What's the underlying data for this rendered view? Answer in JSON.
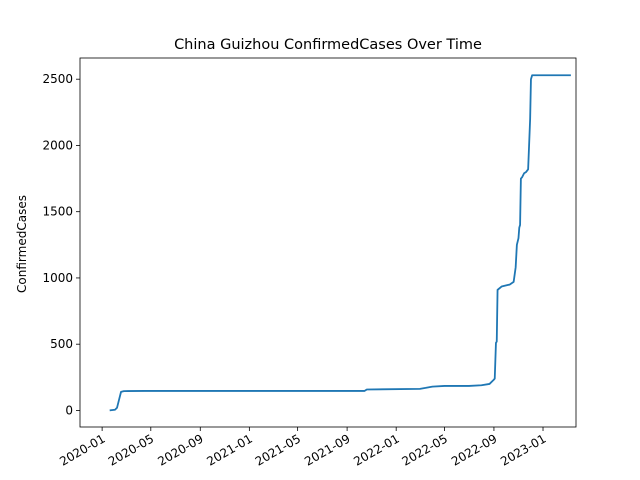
{
  "chart_data": {
    "type": "line",
    "title": "China Guizhou ConfirmedCases Over Time",
    "xlabel": "",
    "ylabel": "ConfirmedCases",
    "xlim": [
      "2019-11-07",
      "2023-03-24"
    ],
    "ylim": [
      -125,
      2660
    ],
    "xticks": [
      {
        "date": "2020-01-01",
        "label": "2020-01"
      },
      {
        "date": "2020-05-01",
        "label": "2020-05"
      },
      {
        "date": "2020-09-01",
        "label": "2020-09"
      },
      {
        "date": "2021-01-01",
        "label": "2021-01"
      },
      {
        "date": "2021-05-01",
        "label": "2021-05"
      },
      {
        "date": "2021-09-01",
        "label": "2021-09"
      },
      {
        "date": "2022-01-01",
        "label": "2022-01"
      },
      {
        "date": "2022-05-01",
        "label": "2022-05"
      },
      {
        "date": "2022-09-01",
        "label": "2022-09"
      },
      {
        "date": "2023-01-01",
        "label": "2023-01"
      }
    ],
    "yticks": [
      0,
      500,
      1000,
      1500,
      2000,
      2500
    ],
    "grid": false,
    "line_color": "#1f77b4",
    "series": [
      {
        "points": [
          [
            "2020-01-22",
            1
          ],
          [
            "2020-02-02",
            5
          ],
          [
            "2020-02-07",
            20
          ],
          [
            "2020-02-12",
            80
          ],
          [
            "2020-02-17",
            140
          ],
          [
            "2020-02-24",
            146
          ],
          [
            "2020-04-15",
            147
          ],
          [
            "2021-10-14",
            147
          ],
          [
            "2021-10-20",
            158
          ],
          [
            "2022-03-01",
            163
          ],
          [
            "2022-03-15",
            170
          ],
          [
            "2022-04-01",
            180
          ],
          [
            "2022-05-01",
            185
          ],
          [
            "2022-07-01",
            185
          ],
          [
            "2022-08-01",
            190
          ],
          [
            "2022-08-21",
            200
          ],
          [
            "2022-08-31",
            230
          ],
          [
            "2022-09-03",
            240
          ],
          [
            "2022-09-06",
            510
          ],
          [
            "2022-09-08",
            520
          ],
          [
            "2022-09-10",
            910
          ],
          [
            "2022-09-20",
            935
          ],
          [
            "2022-10-10",
            950
          ],
          [
            "2022-10-20",
            970
          ],
          [
            "2022-10-25",
            1080
          ],
          [
            "2022-10-28",
            1250
          ],
          [
            "2022-11-01",
            1300
          ],
          [
            "2022-11-03",
            1380
          ],
          [
            "2022-11-05",
            1400
          ],
          [
            "2022-11-07",
            1750
          ],
          [
            "2022-11-10",
            1760
          ],
          [
            "2022-11-15",
            1790
          ],
          [
            "2022-11-20",
            1800
          ],
          [
            "2022-11-25",
            1820
          ],
          [
            "2022-11-30",
            2200
          ],
          [
            "2022-12-02",
            2500
          ],
          [
            "2022-12-05",
            2530
          ],
          [
            "2023-01-15",
            2530
          ],
          [
            "2023-03-09",
            2530
          ]
        ]
      }
    ]
  }
}
